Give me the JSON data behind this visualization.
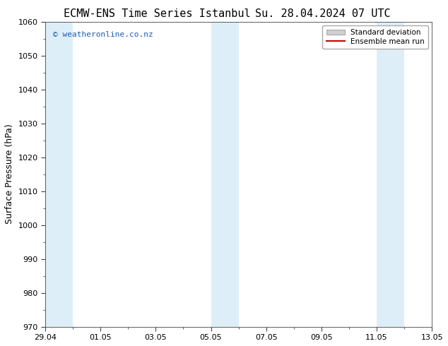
{
  "title_left": "ECMW-ENS Time Series Istanbul",
  "title_right": "Su. 28.04.2024 07 UTC",
  "ylabel": "Surface Pressure (hPa)",
  "ylim": [
    970,
    1060
  ],
  "yticks": [
    970,
    980,
    990,
    1000,
    1010,
    1020,
    1030,
    1040,
    1050,
    1060
  ],
  "xtick_labels": [
    "29.04",
    "01.05",
    "03.05",
    "05.05",
    "07.05",
    "09.05",
    "11.05",
    "13.05"
  ],
  "xtick_positions": [
    0,
    2,
    4,
    6,
    8,
    10,
    12,
    14
  ],
  "watermark": "© weatheronline.co.nz",
  "watermark_color": "#1a5fb4",
  "bg_color": "#ffffff",
  "plot_bg_color": "#ffffff",
  "shaded_band_color": "#ddeef8",
  "shaded_ranges": [
    [
      0,
      1
    ],
    [
      6,
      7
    ],
    [
      12,
      13
    ]
  ],
  "legend_std_label": "Standard deviation",
  "legend_mean_label": "Ensemble mean run",
  "legend_std_facecolor": "#d0d0d0",
  "legend_std_edgecolor": "#aaaaaa",
  "legend_mean_color": "#cc0000",
  "title_fontsize": 11,
  "tick_fontsize": 8,
  "ylabel_fontsize": 9,
  "watermark_fontsize": 8,
  "xlim": [
    0,
    14
  ],
  "spine_color": "#444444"
}
